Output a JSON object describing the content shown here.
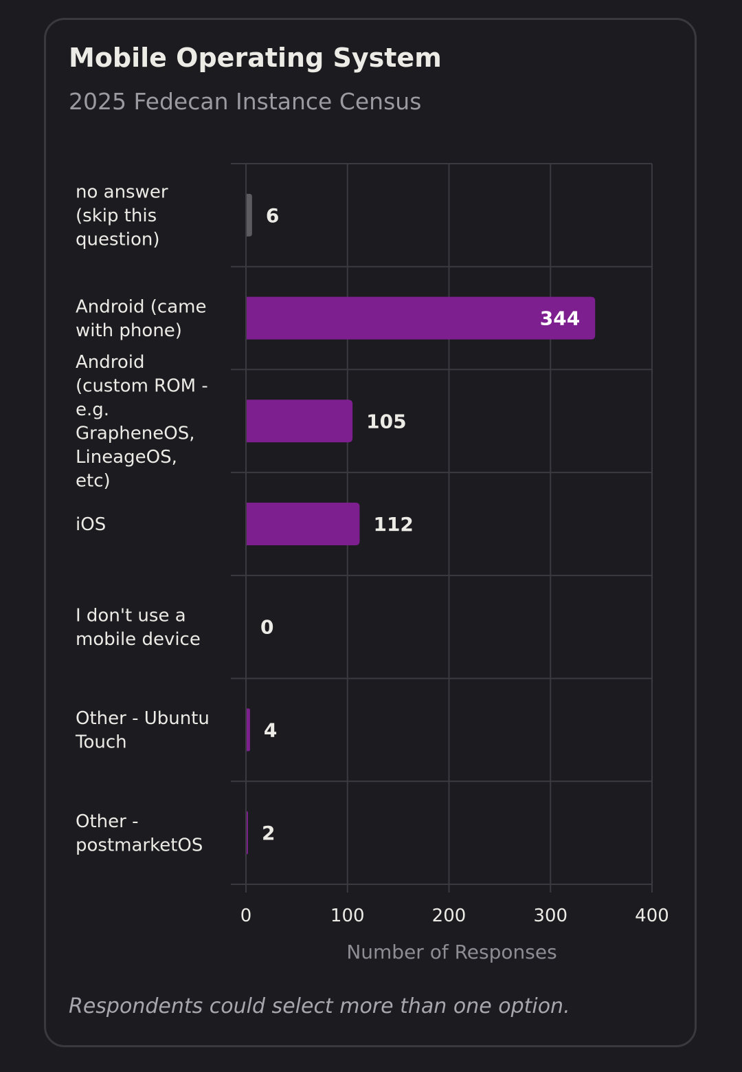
{
  "header": {
    "title": "Mobile Operating System",
    "subtitle": "2025 Fedecan Instance Census"
  },
  "footer": {
    "note": "Respondents could select more than one option."
  },
  "chart_data": {
    "type": "bar",
    "orientation": "horizontal",
    "title": "Mobile Operating System",
    "subtitle": "2025 Fedecan Instance Census",
    "categories": [
      "no answer (skip this question)",
      "Android (came with phone)",
      "Android (custom ROM - e.g. GrapheneOS, LineageOS, etc)",
      "iOS",
      "I don't use a mobile device",
      "Other - Ubuntu Touch",
      "Other - postmarketOS"
    ],
    "category_lines": [
      [
        "no answer",
        "(skip this",
        "question)"
      ],
      [
        "Android (came",
        "with phone)"
      ],
      [
        "Android",
        "(custom ROM -",
        "e.g.",
        "GrapheneOS,",
        "LineageOS,",
        "etc)"
      ],
      [
        "iOS"
      ],
      [
        "I don't use a",
        "mobile device"
      ],
      [
        "Other - Ubuntu",
        "Touch"
      ],
      [
        "Other -",
        "postmarketOS"
      ]
    ],
    "values": [
      6,
      344,
      105,
      112,
      0,
      4,
      2
    ],
    "bar_colors": [
      "#5c5b60",
      "#7e1f8f",
      "#7e1f8f",
      "#7e1f8f",
      "#7e1f8f",
      "#7e1f8f",
      "#7e1f8f"
    ],
    "xlabel": "Number of Responses",
    "ylabel": "",
    "xlim": [
      0,
      400
    ],
    "xticks": [
      0,
      100,
      200,
      300,
      400
    ],
    "grid": true,
    "legend": "none"
  },
  "colors": {
    "background": "#1c1b20",
    "grid": "#3b3a40",
    "text": "#ecebe6",
    "muted_text": "#8e8d93",
    "accent": "#7e1f8f"
  }
}
